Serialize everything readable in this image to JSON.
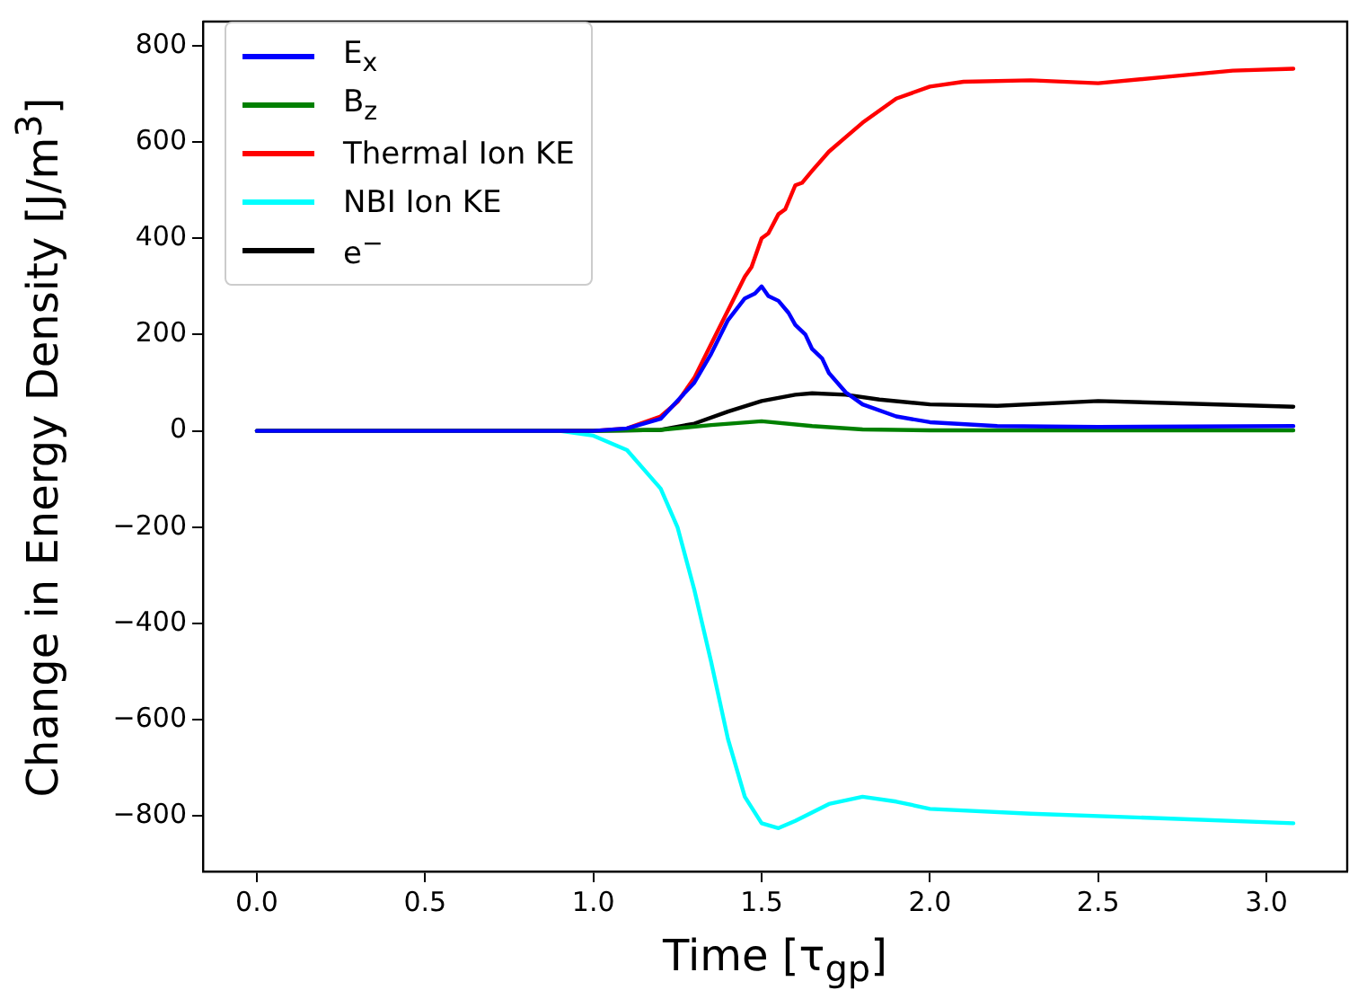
{
  "chart_data": {
    "type": "line",
    "xlabel": "Time [τ$_{gp}$]",
    "ylabel": "Change in Energy Density [J/m$^{3}$]",
    "xlim": [
      -0.16,
      3.24
    ],
    "ylim": [
      -915,
      850
    ],
    "xticks": [
      {
        "value": 0,
        "label": "0.0"
      },
      {
        "value": 0.5,
        "label": "0.5"
      },
      {
        "value": 1,
        "label": "1.0"
      },
      {
        "value": 1.5,
        "label": "1.5"
      },
      {
        "value": 2,
        "label": "2.0"
      },
      {
        "value": 2.5,
        "label": "2.5"
      },
      {
        "value": 3,
        "label": "3.0"
      }
    ],
    "yticks": [
      {
        "value": -800,
        "label": "−800"
      },
      {
        "value": -600,
        "label": "−600"
      },
      {
        "value": -400,
        "label": "−400"
      },
      {
        "value": -200,
        "label": "−200"
      },
      0,
      200,
      400,
      600,
      800
    ],
    "grid": false,
    "legend": "top left",
    "marker": "none",
    "line_style": "solid",
    "series": [
      {
        "name": "E$_{x}$",
        "color": "#0000ff",
        "x": [
          0,
          1.0,
          1.1,
          1.2,
          1.3,
          1.35,
          1.4,
          1.45,
          1.48,
          1.5,
          1.52,
          1.55,
          1.58,
          1.6,
          1.63,
          1.65,
          1.68,
          1.7,
          1.75,
          1.8,
          1.9,
          2.0,
          2.2,
          2.5,
          3.08
        ],
        "values": [
          0,
          0,
          5,
          25,
          100,
          160,
          230,
          275,
          285,
          300,
          280,
          270,
          245,
          220,
          200,
          170,
          150,
          120,
          80,
          55,
          30,
          18,
          10,
          8,
          10
        ]
      },
      {
        "name": "B$_{z}$",
        "color": "#008000",
        "x": [
          0,
          1.0,
          1.2,
          1.35,
          1.5,
          1.65,
          1.8,
          2.0,
          3.08
        ],
        "values": [
          0,
          0,
          2,
          12,
          20,
          10,
          3,
          1,
          1
        ]
      },
      {
        "name": "Thermal Ion KE",
        "color": "#ff0000",
        "x": [
          0,
          1.0,
          1.1,
          1.2,
          1.25,
          1.3,
          1.35,
          1.4,
          1.45,
          1.47,
          1.5,
          1.52,
          1.55,
          1.57,
          1.6,
          1.62,
          1.65,
          1.7,
          1.75,
          1.8,
          1.9,
          2.0,
          2.1,
          2.3,
          2.5,
          2.7,
          2.9,
          3.08
        ],
        "values": [
          0,
          0,
          5,
          30,
          60,
          110,
          180,
          250,
          320,
          340,
          400,
          410,
          450,
          460,
          510,
          515,
          540,
          580,
          610,
          640,
          690,
          715,
          725,
          728,
          722,
          735,
          748,
          752
        ]
      },
      {
        "name": "NBI Ion KE",
        "color": "#00ffff",
        "x": [
          0,
          0.9,
          1.0,
          1.1,
          1.2,
          1.25,
          1.3,
          1.35,
          1.4,
          1.45,
          1.5,
          1.55,
          1.6,
          1.7,
          1.8,
          1.9,
          2.0,
          2.3,
          2.7,
          3.08
        ],
        "values": [
          0,
          0,
          -10,
          -40,
          -120,
          -200,
          -330,
          -480,
          -640,
          -760,
          -815,
          -825,
          -810,
          -775,
          -760,
          -770,
          -785,
          -795,
          -805,
          -815
        ]
      },
      {
        "name": "e$^{−}$",
        "color": "#000000",
        "x": [
          0,
          1.0,
          1.2,
          1.3,
          1.4,
          1.5,
          1.6,
          1.65,
          1.75,
          1.85,
          2.0,
          2.2,
          2.5,
          2.7,
          3.08
        ],
        "values": [
          0,
          0,
          2,
          15,
          40,
          62,
          75,
          78,
          75,
          65,
          55,
          52,
          62,
          58,
          50
        ]
      }
    ]
  }
}
